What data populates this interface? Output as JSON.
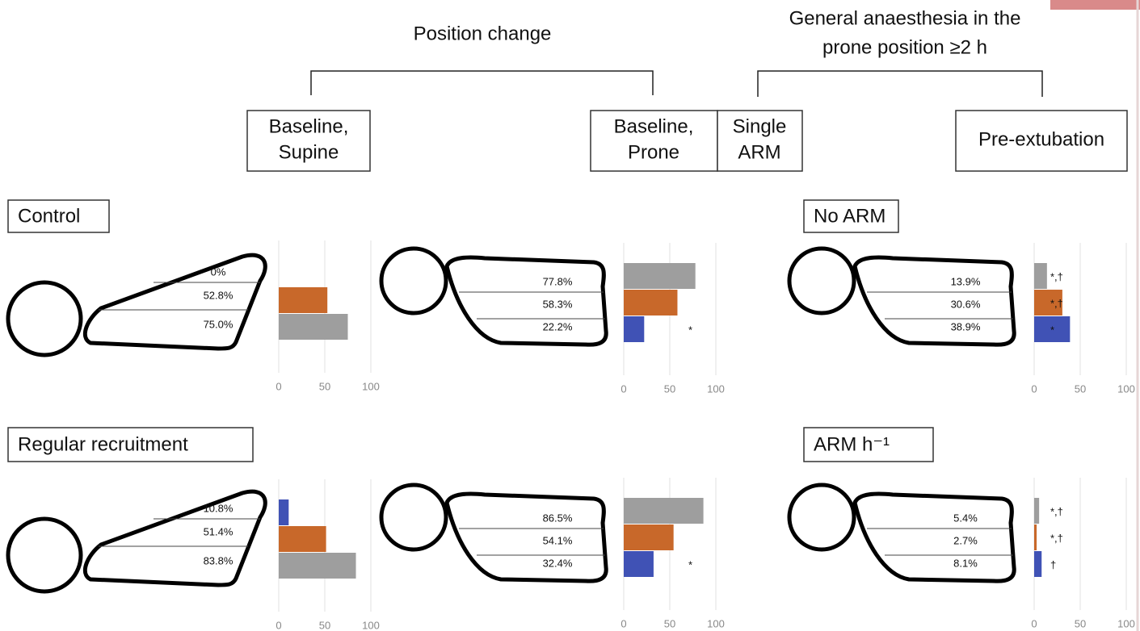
{
  "header": {
    "position_change": "Position change",
    "prone_heading": [
      "General anaesthesia in the",
      "prone position ≥2 h"
    ]
  },
  "stages": [
    [
      "Baseline,",
      "Supine"
    ],
    [
      "Baseline,",
      "Prone"
    ],
    [
      "Single",
      "ARM"
    ],
    [
      "Pre-extubation"
    ]
  ],
  "groups": [
    "Control",
    "No ARM",
    "Regular recruitment",
    "ARM h⁻¹"
  ],
  "chart_data": [
    {
      "type": "bar",
      "orientation": "horizontal",
      "values": [
        0,
        52.8,
        75.0
      ],
      "value_labels": [
        "0%",
        "52.8%",
        "75.0%"
      ],
      "colors": [
        "#4052b5",
        "#c8682a",
        "#9e9e9e"
      ],
      "notes": [
        null,
        null,
        null
      ],
      "xlim": [
        0,
        100
      ],
      "xticks": [
        0,
        50,
        100
      ],
      "grid": true
    },
    {
      "type": "bar",
      "orientation": "horizontal",
      "values": [
        77.8,
        58.3,
        22.2
      ],
      "value_labels": [
        "77.8%",
        "58.3%",
        "22.2%"
      ],
      "colors": [
        "#9e9e9e",
        "#c8682a",
        "#4052b5"
      ],
      "notes": [
        null,
        null,
        "*"
      ],
      "xlim": [
        0,
        100
      ],
      "xticks": [
        0,
        50,
        100
      ],
      "grid": true
    },
    {
      "type": "bar",
      "orientation": "horizontal",
      "values": [
        13.9,
        30.6,
        38.9
      ],
      "value_labels": [
        "13.9%",
        "30.6%",
        "38.9%"
      ],
      "colors": [
        "#9e9e9e",
        "#c8682a",
        "#4052b5"
      ],
      "notes": [
        "*,†",
        "*,†",
        "*"
      ],
      "xlim": [
        0,
        100
      ],
      "xticks": [
        0,
        50,
        100
      ],
      "grid": true
    },
    {
      "type": "bar",
      "orientation": "horizontal",
      "values": [
        10.8,
        51.4,
        83.8
      ],
      "value_labels": [
        "10.8%",
        "51.4%",
        "83.8%"
      ],
      "colors": [
        "#4052b5",
        "#c8682a",
        "#9e9e9e"
      ],
      "notes": [
        null,
        null,
        null
      ],
      "xlim": [
        0,
        100
      ],
      "xticks": [
        0,
        50,
        100
      ],
      "grid": true
    },
    {
      "type": "bar",
      "orientation": "horizontal",
      "values": [
        86.5,
        54.1,
        32.4
      ],
      "value_labels": [
        "86.5%",
        "54.1%",
        "32.4%"
      ],
      "colors": [
        "#9e9e9e",
        "#c8682a",
        "#4052b5"
      ],
      "notes": [
        null,
        null,
        "*"
      ],
      "xlim": [
        0,
        100
      ],
      "xticks": [
        0,
        50,
        100
      ],
      "grid": true
    },
    {
      "type": "bar",
      "orientation": "horizontal",
      "values": [
        5.4,
        2.7,
        8.1
      ],
      "value_labels": [
        "5.4%",
        "2.7%",
        "8.1%"
      ],
      "colors": [
        "#9e9e9e",
        "#c8682a",
        "#4052b5"
      ],
      "notes": [
        "*,†",
        "*,†",
        "†"
      ],
      "xlim": [
        0,
        100
      ],
      "xticks": [
        0,
        50,
        100
      ],
      "grid": true
    }
  ]
}
